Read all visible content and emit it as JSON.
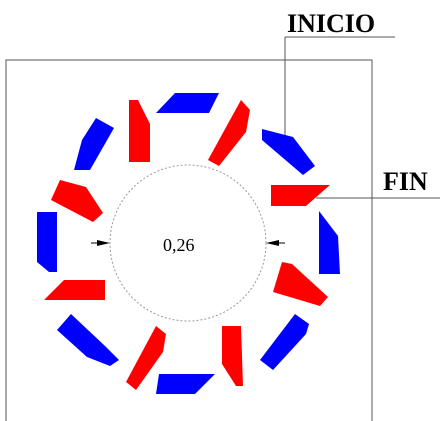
{
  "labels": {
    "start": "INICIO",
    "end": "FIN",
    "diameter": "0,26"
  },
  "colors": {
    "red": "#ff0000",
    "blue": "#0000ff",
    "line": "#555555",
    "circle": "#888888",
    "arrow": "#000000"
  }
}
